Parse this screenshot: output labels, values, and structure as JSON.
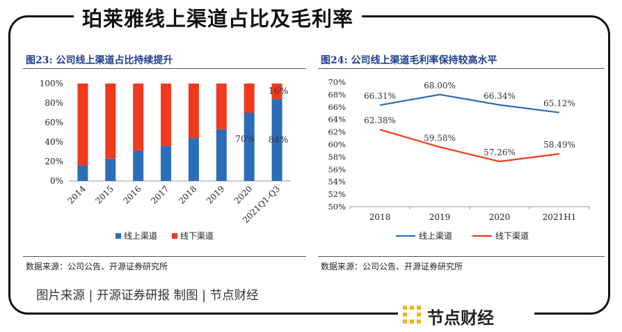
{
  "page": {
    "title": "珀莱雅线上渠道占比及毛利率",
    "credit": "图片来源 | 开源证券研报   制图 | 节点财经",
    "brand": "节点财经"
  },
  "fig23": {
    "title": "图23:  公司线上渠道占比持续提升",
    "source": "数据来源：公司公告、开源证券研究所"
  },
  "fig24": {
    "title": "图24:  公司线上渠道毛利率保持较高水平",
    "source": "数据来源：公司公告、开源证券研究所"
  },
  "colors": {
    "online": "#2a6eb7",
    "offline": "#f1391f",
    "accent": "#f2b31c"
  },
  "chart_data": [
    {
      "type": "bar",
      "stacked": true,
      "categories": [
        "2014",
        "2015",
        "2016",
        "2017",
        "2018",
        "2019",
        "2020",
        "2021Q1-Q3"
      ],
      "series": [
        {
          "name": "线上渠道",
          "values": [
            16,
            23,
            31,
            36,
            44,
            53,
            70,
            84
          ]
        },
        {
          "name": "线下渠道",
          "values": [
            84,
            77,
            69,
            64,
            56,
            47,
            30,
            16
          ]
        }
      ],
      "ylim": [
        0,
        100
      ],
      "yticks": [
        "0%",
        "20%",
        "40%",
        "60%",
        "80%",
        "100%"
      ],
      "data_labels": [
        {
          "category": "2020",
          "text": "70%"
        },
        {
          "category": "2021Q1-Q3",
          "text": "84%"
        },
        {
          "category": "2021Q1-Q3",
          "text": "16%"
        }
      ],
      "legend": "bottom"
    },
    {
      "type": "line",
      "x": [
        "2018",
        "2019",
        "2020",
        "2021H1"
      ],
      "series": [
        {
          "name": "线上渠道",
          "values": [
            66.31,
            68.0,
            66.34,
            65.12
          ],
          "labels": [
            "66.31%",
            "68.00%",
            "66.34%",
            "65.12%"
          ]
        },
        {
          "name": "线下渠道",
          "values": [
            62.38,
            59.58,
            57.26,
            58.49
          ],
          "labels": [
            "62.38%",
            "59.58%",
            "57.26%",
            "58.49%"
          ]
        }
      ],
      "ylim": [
        50,
        70
      ],
      "yticks": [
        "50%",
        "52%",
        "54%",
        "56%",
        "58%",
        "60%",
        "62%",
        "64%",
        "66%",
        "68%",
        "70%"
      ],
      "legend": "bottom"
    }
  ]
}
